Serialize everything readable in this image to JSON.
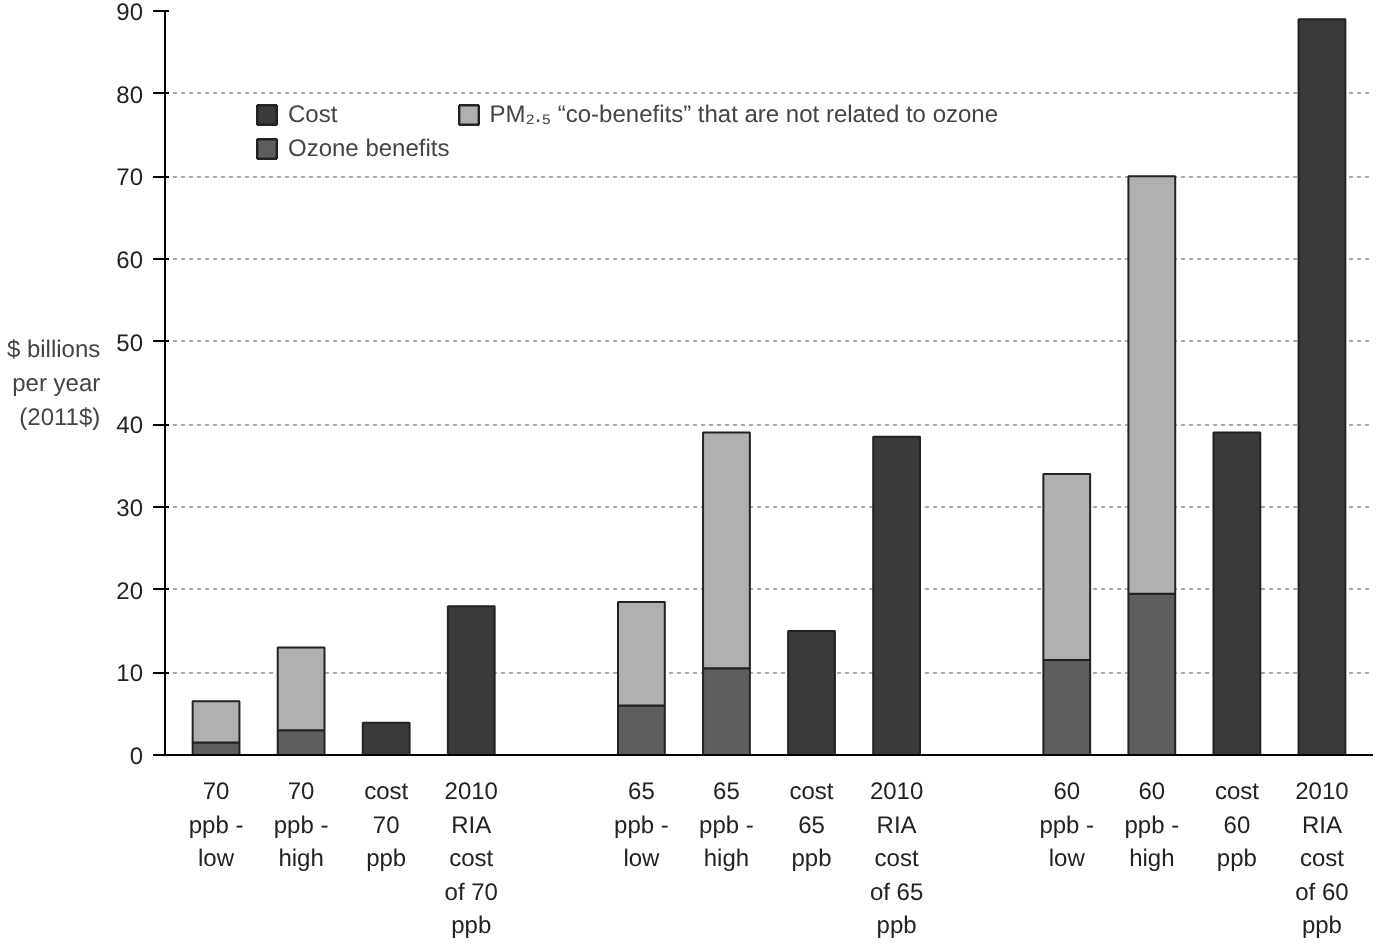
{
  "chart_data": {
    "type": "bar",
    "stacked": true,
    "categories": [
      "70 ppb - low",
      "70 ppb - high",
      "cost 70 ppb",
      "2010 RIA cost of 70 ppb",
      null,
      "65 ppb - low",
      "65 ppb - high",
      "cost 65 ppb",
      "2010 RIA cost of 65 ppb",
      null,
      "60 ppb - low",
      "60 ppb - high",
      "cost 60 ppb",
      "2010 RIA cost of 60 ppb"
    ],
    "series": [
      {
        "name": "Cost",
        "color": "#3a3a3a",
        "values": [
          null,
          null,
          3.9,
          18,
          null,
          null,
          null,
          15,
          38.5,
          null,
          null,
          null,
          39,
          89
        ]
      },
      {
        "name": "Ozone benefits",
        "color": "#5e5e5e",
        "values": [
          1.5,
          3,
          null,
          null,
          null,
          6,
          10.5,
          null,
          null,
          null,
          11.5,
          19.5,
          null,
          null
        ]
      },
      {
        "name": "PM₂.₅ “co-benefits” that are not related to ozone",
        "color": "#b0b0b0",
        "values": [
          5,
          10,
          null,
          null,
          null,
          12.5,
          28.5,
          null,
          null,
          null,
          22.5,
          50.5,
          null,
          null
        ]
      }
    ],
    "ylabel": "$ billions per year (2011$)",
    "ylim": [
      0,
      90
    ],
    "yticks": [
      0,
      10,
      20,
      30,
      40,
      50,
      60,
      70,
      80,
      90
    ],
    "grid": "y",
    "legend": "top left"
  }
}
